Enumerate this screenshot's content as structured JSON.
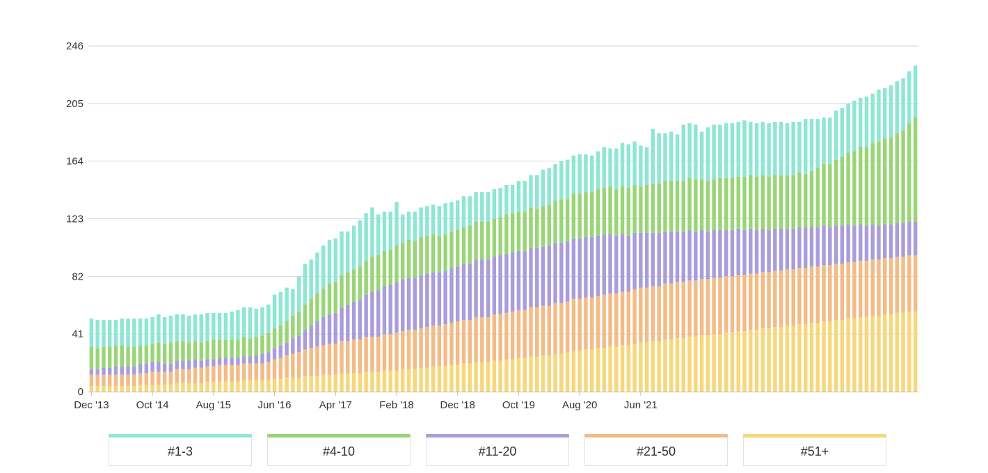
{
  "chart_data": {
    "type": "bar",
    "stacked": true,
    "y_ticks": [
      0,
      41,
      82,
      123,
      164,
      205,
      246
    ],
    "ylim": [
      0,
      246
    ],
    "x_tick_labels": [
      "Dec '13",
      "Oct '14",
      "Aug '15",
      "Jun '16",
      "Apr '17",
      "Feb '18",
      "Dec '18",
      "Oct '19",
      "Aug '20",
      "Jun '21"
    ],
    "x_tick_index": [
      0,
      10,
      20,
      30,
      40,
      50,
      60,
      70,
      80,
      90
    ],
    "grid": true,
    "legend_position": "bottom",
    "series": [
      {
        "name": "#1-3",
        "color": "#8ee6d4",
        "values": [
          20,
          20,
          19,
          19,
          18,
          19,
          20,
          20,
          19,
          19,
          19,
          20,
          19,
          19,
          19,
          19,
          19,
          19,
          20,
          20,
          19,
          19,
          19,
          20,
          21,
          21,
          22,
          20,
          20,
          20,
          24,
          24,
          24,
          19,
          25,
          29,
          28,
          29,
          31,
          31,
          31,
          31,
          29,
          31,
          33,
          34,
          35,
          29,
          28,
          27,
          31,
          20,
          20,
          21,
          21,
          21,
          21,
          21,
          22,
          21,
          21,
          22,
          21,
          21,
          21,
          21,
          21,
          21,
          21,
          20,
          22,
          22,
          23,
          24,
          26,
          26,
          26,
          27,
          28,
          27,
          28,
          27,
          26,
          27,
          29,
          27,
          29,
          31,
          31,
          31,
          29,
          27,
          39,
          36,
          34,
          35,
          33,
          40,
          39,
          39,
          34,
          38,
          39,
          38,
          39,
          39,
          39,
          40,
          38,
          38,
          38,
          38,
          38,
          38,
          37,
          38,
          36,
          39,
          37,
          35,
          33,
          33,
          35,
          35,
          35,
          36,
          35,
          36,
          35,
          37,
          36,
          37,
          37,
          37,
          37,
          37
        ]
      },
      {
        "name": "#4-10",
        "color": "#99d577",
        "values": [
          16,
          15,
          15,
          15,
          15,
          15,
          14,
          14,
          13,
          13,
          13,
          14,
          14,
          15,
          14,
          14,
          13,
          13,
          13,
          13,
          14,
          13,
          13,
          13,
          13,
          14,
          13,
          13,
          13,
          14,
          14,
          14,
          15,
          16,
          17,
          18,
          19,
          20,
          20,
          22,
          22,
          23,
          23,
          23,
          24,
          24,
          25,
          25,
          25,
          25,
          26,
          26,
          27,
          26,
          27,
          27,
          27,
          26,
          26,
          26,
          26,
          26,
          27,
          27,
          27,
          27,
          27,
          27,
          28,
          28,
          28,
          28,
          29,
          28,
          29,
          29,
          30,
          31,
          30,
          32,
          32,
          32,
          32,
          33,
          33,
          34,
          33,
          34,
          34,
          34,
          33,
          34,
          35,
          35,
          36,
          36,
          36,
          36,
          37,
          37,
          36,
          36,
          36,
          37,
          37,
          37,
          37,
          38,
          38,
          38,
          38,
          38,
          38,
          38,
          38,
          38,
          39,
          38,
          40,
          42,
          44,
          45,
          47,
          49,
          51,
          53,
          55,
          56,
          58,
          60,
          61,
          62,
          64,
          66,
          70,
          74
        ]
      },
      {
        "name": "#11-20",
        "color": "#a99ddb",
        "values": [
          4,
          4,
          5,
          5,
          6,
          6,
          6,
          6,
          7,
          7,
          7,
          7,
          6,
          6,
          6,
          6,
          6,
          6,
          5,
          5,
          5,
          5,
          5,
          5,
          5,
          5,
          5,
          6,
          7,
          7,
          8,
          9,
          9,
          11,
          12,
          14,
          16,
          18,
          20,
          21,
          22,
          24,
          26,
          27,
          28,
          30,
          32,
          33,
          34,
          35,
          36,
          37,
          37,
          37,
          38,
          38,
          38,
          38,
          38,
          39,
          39,
          40,
          40,
          41,
          41,
          41,
          41,
          42,
          42,
          42,
          42,
          42,
          42,
          42,
          42,
          43,
          43,
          43,
          43,
          43,
          43,
          43,
          43,
          43,
          43,
          42,
          41,
          41,
          40,
          40,
          39,
          39,
          38,
          38,
          37,
          37,
          36,
          36,
          36,
          35,
          35,
          34,
          34,
          34,
          33,
          33,
          33,
          32,
          32,
          31,
          31,
          30,
          30,
          30,
          29,
          29,
          29,
          29,
          28,
          28,
          28,
          27,
          27,
          27,
          27,
          26,
          26,
          25,
          25,
          24,
          24,
          24,
          24,
          24,
          24,
          24
        ]
      },
      {
        "name": "#21-50",
        "color": "#f3bb85",
        "values": [
          8,
          8,
          8,
          8,
          8,
          8,
          8,
          8,
          8,
          8,
          9,
          9,
          9,
          9,
          10,
          10,
          10,
          11,
          11,
          11,
          11,
          12,
          12,
          12,
          12,
          12,
          12,
          12,
          12,
          13,
          14,
          15,
          16,
          17,
          18,
          19,
          20,
          21,
          21,
          22,
          22,
          23,
          23,
          24,
          24,
          25,
          25,
          25,
          26,
          26,
          27,
          27,
          28,
          28,
          28,
          29,
          29,
          29,
          30,
          30,
          31,
          31,
          31,
          32,
          32,
          32,
          33,
          33,
          33,
          34,
          34,
          34,
          35,
          35,
          35,
          35,
          36,
          36,
          36,
          37,
          37,
          37,
          37,
          37,
          38,
          38,
          38,
          38,
          38,
          39,
          39,
          39,
          39,
          39,
          40,
          40,
          40,
          40,
          40,
          40,
          40,
          40,
          40,
          40,
          40,
          40,
          40,
          40,
          40,
          40,
          40,
          40,
          40,
          40,
          40,
          40,
          40,
          40,
          40,
          40,
          40,
          40,
          40,
          40,
          40,
          40,
          40,
          40,
          40,
          40,
          40,
          40,
          40,
          40,
          40,
          40
        ]
      },
      {
        "name": "#51+",
        "color": "#f6d77a",
        "values": [
          4,
          4,
          4,
          4,
          4,
          4,
          4,
          4,
          5,
          5,
          5,
          5,
          5,
          5,
          6,
          6,
          6,
          6,
          6,
          7,
          7,
          7,
          7,
          7,
          7,
          8,
          8,
          8,
          8,
          8,
          9,
          9,
          10,
          10,
          10,
          11,
          11,
          11,
          12,
          12,
          12,
          13,
          13,
          13,
          13,
          14,
          14,
          14,
          15,
          15,
          15,
          16,
          16,
          16,
          17,
          17,
          18,
          18,
          18,
          19,
          19,
          20,
          20,
          21,
          21,
          21,
          22,
          22,
          23,
          23,
          24,
          24,
          25,
          25,
          26,
          26,
          27,
          27,
          28,
          29,
          29,
          30,
          30,
          31,
          31,
          32,
          32,
          33,
          33,
          34,
          35,
          35,
          36,
          36,
          37,
          37,
          38,
          38,
          39,
          39,
          40,
          40,
          41,
          41,
          42,
          42,
          43,
          43,
          44,
          44,
          45,
          45,
          46,
          46,
          47,
          47,
          48,
          48,
          49,
          49,
          50,
          50,
          51,
          51,
          52,
          52,
          53,
          53,
          54,
          54,
          55,
          55,
          56,
          56,
          57,
          57
        ]
      }
    ]
  },
  "legend": {
    "items": [
      {
        "label": "#1-3",
        "color": "#8ee6d4"
      },
      {
        "label": "#4-10",
        "color": "#99d577"
      },
      {
        "label": "#11-20",
        "color": "#a99ddb"
      },
      {
        "label": "#21-50",
        "color": "#f3bb85"
      },
      {
        "label": "#51+",
        "color": "#f6d77a"
      }
    ]
  }
}
